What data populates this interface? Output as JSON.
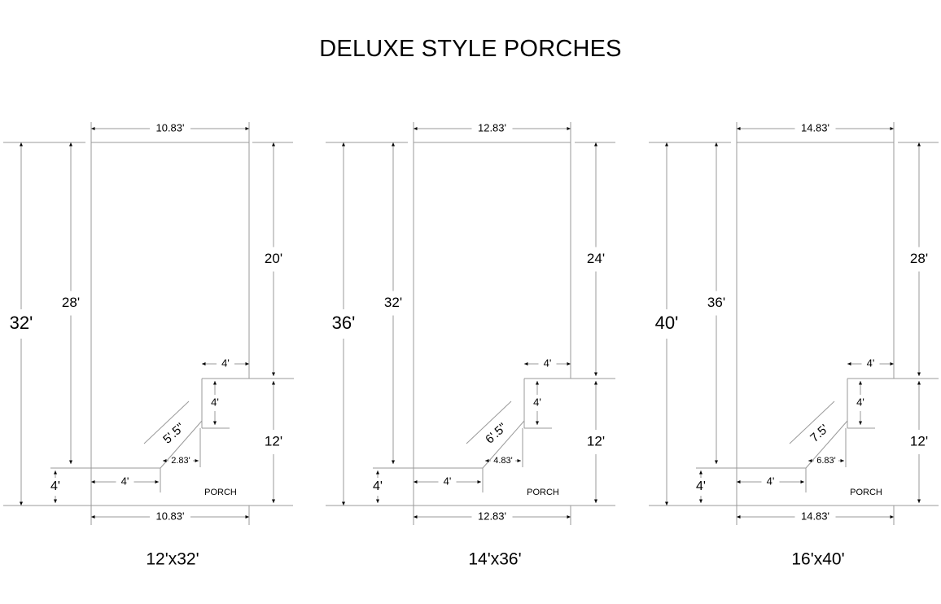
{
  "title": "DELUXE STYLE PORCHES",
  "colors": {
    "line": "#9a9a9a",
    "text": "#000000",
    "background": "#ffffff"
  },
  "plans": [
    {
      "name": "12'x32'",
      "top_width": "10.83'",
      "bottom_width": "10.83'",
      "overall_length": "32'",
      "main_length": "28'",
      "left_porch_depth": "4'",
      "right_upper_length": "20'",
      "right_lower_length": "12'",
      "step_top_width": "4'",
      "step_height": "4'",
      "diagonal": "5'.5\"",
      "inner_offset": "2.83'",
      "bottom_left_width": "4'",
      "porch_label": "PORCH"
    },
    {
      "name": "14'x36'",
      "top_width": "12.83'",
      "bottom_width": "12.83'",
      "overall_length": "36'",
      "main_length": "32'",
      "left_porch_depth": "4'",
      "right_upper_length": "24'",
      "right_lower_length": "12'",
      "step_top_width": "4'",
      "step_height": "4'",
      "diagonal": "6'.5\"",
      "inner_offset": "4.83'",
      "bottom_left_width": "4'",
      "porch_label": "PORCH"
    },
    {
      "name": "16'x40'",
      "top_width": "14.83'",
      "bottom_width": "14.83'",
      "overall_length": "40'",
      "main_length": "36'",
      "left_porch_depth": "4'",
      "right_upper_length": "28'",
      "right_lower_length": "12'",
      "step_top_width": "4'",
      "step_height": "4'",
      "diagonal": "7.5'",
      "inner_offset": "6.83'",
      "bottom_left_width": "4'",
      "porch_label": "PORCH"
    }
  ]
}
